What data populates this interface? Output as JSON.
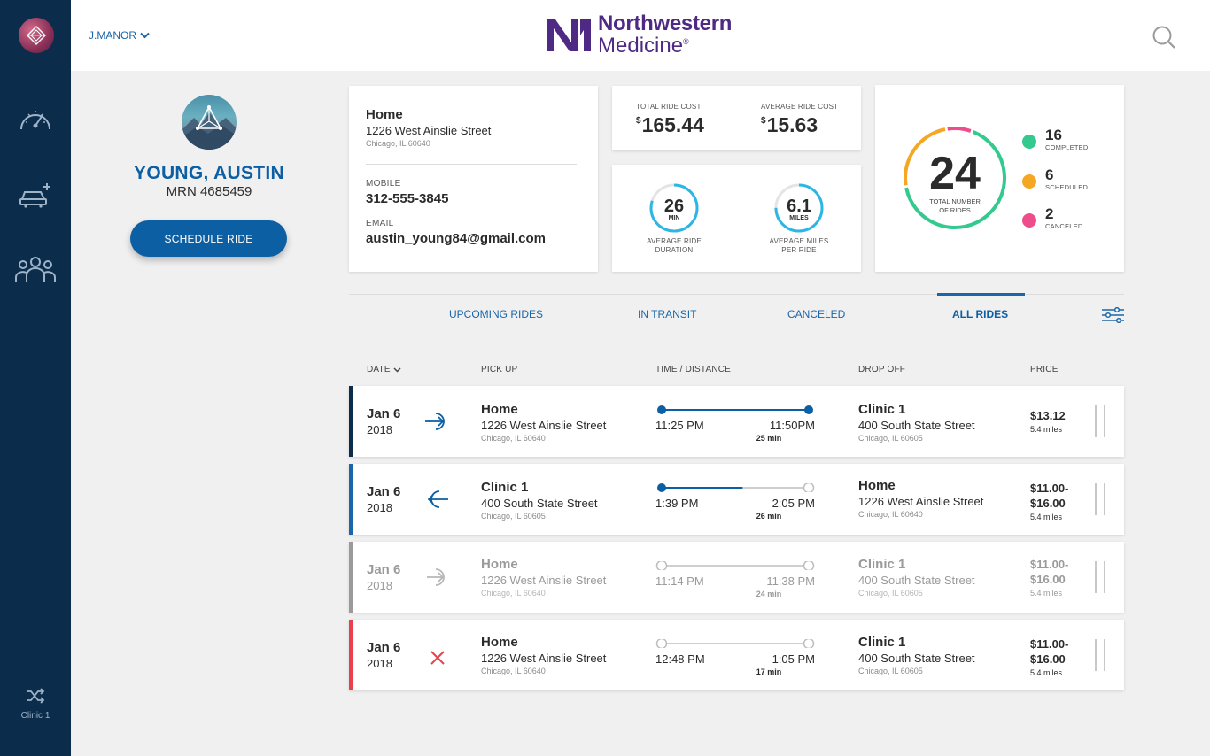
{
  "nav": {
    "items": [
      "speedometer-icon",
      "add-car-icon",
      "group-icon"
    ],
    "bottom": {
      "icon": "shuffle-icon",
      "label": "Clinic 1"
    }
  },
  "header": {
    "user": "J.MANOR",
    "brand_line1": "Northwestern",
    "brand_line2": "Medicine",
    "brand_reg": "®",
    "brand_color": "#4e2a84"
  },
  "patient": {
    "name": "YOUNG, AUSTIN",
    "mrn": "MRN 4685459",
    "schedule_label": "SCHEDULE RIDE"
  },
  "contact": {
    "home_title": "Home",
    "home_address": "1226 West Ainslie Street",
    "home_city": "Chicago, IL 60640",
    "mobile_label": "MOBILE",
    "mobile": "312-555-3845",
    "email_label": "EMAIL",
    "email": "austin_young84@gmail.com"
  },
  "costs": {
    "total_label": "TOTAL RIDE COST",
    "currency": "$",
    "total_value": "165.44",
    "avg_label": "AVERAGE RIDE COST",
    "avg_value": "15.63"
  },
  "stats": {
    "duration": {
      "value": "26",
      "unit": "MIN",
      "caption1": "AVERAGE RIDE",
      "caption2": "DURATION",
      "fraction": 0.8
    },
    "miles": {
      "value": "6.1",
      "unit": "MILES",
      "caption1": "AVERAGE MILES",
      "caption2": "PER RIDE",
      "fraction": 0.75
    }
  },
  "rides_summary": {
    "total": "24",
    "total_label1": "TOTAL NUMBER",
    "total_label2": "OF RIDES",
    "segments": [
      {
        "name": "completed",
        "count": 16,
        "color": "#34c98e"
      },
      {
        "name": "scheduled",
        "count": 6,
        "color": "#f5a623"
      },
      {
        "name": "canceled",
        "count": 2,
        "color": "#ee4d8c"
      }
    ],
    "completed": {
      "count": "16",
      "label": "COMPLETED",
      "color": "#34c98e"
    },
    "scheduled": {
      "count": "6",
      "label": "SCHEDULED",
      "color": "#f5a623"
    },
    "canceled": {
      "count": "2",
      "label": "CANCELED",
      "color": "#ee4d8c"
    }
  },
  "tabs": {
    "upcoming": "UPCOMING RIDES",
    "in_transit": "IN TRANSIT",
    "canceled": "CANCELED",
    "all": "ALL RIDES",
    "active": "all"
  },
  "table": {
    "headers": {
      "date": "DATE",
      "pickup": "PICK UP",
      "time": "TIME / DISTANCE",
      "dropoff": "DROP OFF",
      "price": "PRICE"
    },
    "rows": [
      {
        "status": "completed",
        "bar_color": "#0c2c4c",
        "icon": "arrow-in-circle-icon",
        "progress": 1,
        "date": "Jan 6",
        "year": "2018",
        "pickup": {
          "title": "Home",
          "address": "1226 West Ainslie Street",
          "city": "Chicago, IL 60640"
        },
        "start": "11:25 PM",
        "end": "11:50PM",
        "duration": "25 min",
        "dropoff": {
          "title": "Clinic 1",
          "address": "400 South State Street",
          "city": "Chicago, IL 60605"
        },
        "price": "$13.12",
        "price2": "",
        "miles": "5.4 miles"
      },
      {
        "status": "in-transit",
        "bar_color": "#1a66a8",
        "icon": "arrow-out-circle-icon",
        "progress": 0.55,
        "date": "Jan 6",
        "year": "2018",
        "pickup": {
          "title": "Clinic 1",
          "address": "400 South State Street",
          "city": "Chicago, IL 60605"
        },
        "start": "1:39 PM",
        "end": "2:05 PM",
        "duration": "26 min",
        "dropoff": {
          "title": "Home",
          "address": "1226 West Ainslie Street",
          "city": "Chicago, IL 60640"
        },
        "price": "$11.00-",
        "price2": "$16.00",
        "miles": "5.4 miles"
      },
      {
        "status": "scheduled",
        "bar_color": "#9a9a9a",
        "icon": "arrow-in-circle-icon",
        "progress": 0,
        "date": "Jan 6",
        "year": "2018",
        "pickup": {
          "title": "Home",
          "address": "1226 West Ainslie Street",
          "city": "Chicago, IL 60640"
        },
        "start": "11:14 PM",
        "end": "11:38 PM",
        "duration": "24 min",
        "dropoff": {
          "title": "Clinic 1",
          "address": "400 South State Street",
          "city": "Chicago, IL 60605"
        },
        "price": "$11.00-",
        "price2": "$16.00",
        "miles": "5.4 miles"
      },
      {
        "status": "canceled",
        "bar_color": "#e8414d",
        "icon": "close-icon",
        "progress": 0,
        "date": "Jan 6",
        "year": "2018",
        "pickup": {
          "title": "Home",
          "address": "1226 West Ainslie Street",
          "city": "Chicago, IL 60640"
        },
        "start": "12:48 PM",
        "end": "1:05 PM",
        "duration": "17 min",
        "dropoff": {
          "title": "Clinic 1",
          "address": "400 South State Street",
          "city": "Chicago, IL 60605"
        },
        "price": "$11.00-",
        "price2": "$16.00",
        "miles": "5.4 miles"
      }
    ]
  }
}
